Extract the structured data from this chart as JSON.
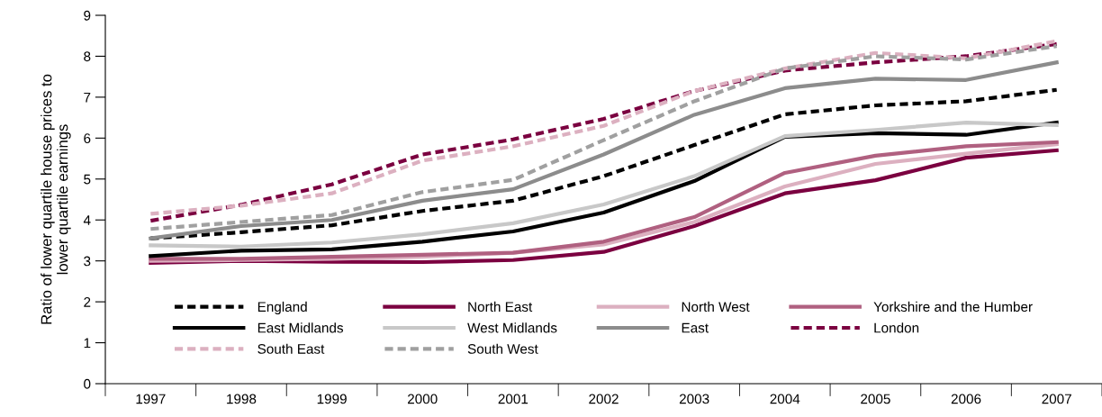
{
  "chart_data": {
    "type": "line",
    "ylabel": "Ratio of lower quartile house prices to\nlower quartile earnings",
    "categories": [
      "1997",
      "1998",
      "1999",
      "2000",
      "2001",
      "2002",
      "2003",
      "2004",
      "2005",
      "2006",
      "2007"
    ],
    "ylim": [
      0,
      9
    ],
    "yticks": [
      0,
      1,
      2,
      3,
      4,
      5,
      6,
      7,
      8,
      9
    ],
    "grid": false,
    "legend": "bottom",
    "marker": "none",
    "series": [
      {
        "name": "England",
        "color": "#000000",
        "line_style": "dashed",
        "values": [
          3.55,
          3.7,
          3.87,
          4.22,
          4.47,
          5.07,
          5.83,
          6.58,
          6.8,
          6.9,
          7.18
        ]
      },
      {
        "name": "North East",
        "color": "#7b0040",
        "line_style": "solid",
        "values": [
          2.95,
          3.0,
          2.98,
          2.97,
          3.02,
          3.22,
          3.85,
          4.65,
          4.97,
          5.52,
          5.7
        ]
      },
      {
        "name": "North West",
        "color": "#dcb0c0",
        "line_style": "solid",
        "values": [
          3.0,
          3.02,
          3.05,
          3.1,
          3.2,
          3.4,
          3.95,
          4.82,
          5.37,
          5.62,
          5.85
        ]
      },
      {
        "name": "Yorkshire and the Humber",
        "color": "#b06080",
        "line_style": "solid",
        "values": [
          3.05,
          3.05,
          3.1,
          3.15,
          3.2,
          3.47,
          4.07,
          5.15,
          5.57,
          5.8,
          5.9
        ]
      },
      {
        "name": "East Midlands",
        "color": "#000000",
        "line_style": "solid",
        "values": [
          3.12,
          3.25,
          3.28,
          3.47,
          3.72,
          4.18,
          4.95,
          6.03,
          6.12,
          6.08,
          6.38
        ]
      },
      {
        "name": "West Midlands",
        "color": "#c8c8c8",
        "line_style": "solid",
        "values": [
          3.38,
          3.35,
          3.45,
          3.65,
          3.92,
          4.38,
          5.07,
          6.05,
          6.2,
          6.38,
          6.32
        ]
      },
      {
        "name": "East",
        "color": "#8c8c8c",
        "line_style": "solid",
        "values": [
          3.55,
          3.85,
          4.0,
          4.47,
          4.75,
          5.6,
          6.57,
          7.22,
          7.45,
          7.42,
          7.85
        ]
      },
      {
        "name": "London",
        "color": "#7b0040",
        "line_style": "dashed",
        "values": [
          3.98,
          4.37,
          4.87,
          5.6,
          5.97,
          6.47,
          7.15,
          7.65,
          7.85,
          8.0,
          8.3
        ]
      },
      {
        "name": "South East",
        "color": "#dcb0c0",
        "line_style": "dashed",
        "values": [
          4.15,
          4.35,
          4.65,
          5.45,
          5.8,
          6.3,
          7.15,
          7.7,
          8.08,
          7.95,
          8.37
        ]
      },
      {
        "name": "South West",
        "color": "#a0a0a0",
        "line_style": "dashed",
        "values": [
          3.78,
          3.95,
          4.12,
          4.68,
          4.98,
          5.95,
          6.9,
          7.7,
          8.0,
          7.92,
          8.25
        ]
      }
    ]
  }
}
